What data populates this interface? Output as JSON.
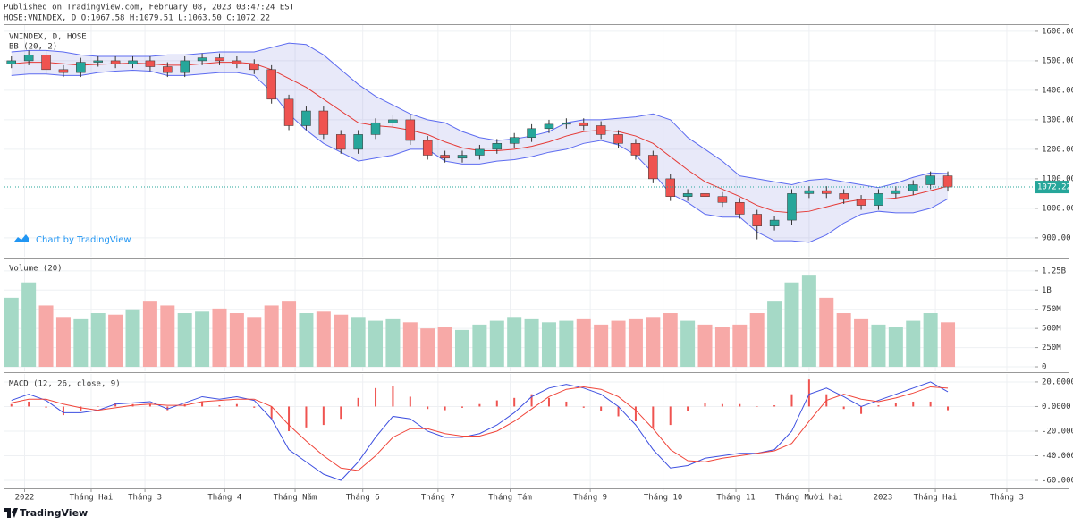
{
  "header": {
    "published": "Published on TradingView.com, February 08, 2023 03:47:24 EST",
    "symbol_line": "HOSE:VNINDEX, D O:1067.58 H:1079.51 L:1063.50 C:1072.22"
  },
  "watermark": "Chart by TradingView",
  "footer": "TradingView",
  "chart_data": [
    {
      "type": "candlestick",
      "title": "VNINDEX, D, HOSE",
      "indicator": "BB (20, 2)",
      "x": [
        0,
        5,
        10,
        15,
        20,
        25,
        30,
        35,
        40,
        45,
        50,
        55,
        60,
        65,
        70,
        75,
        80,
        85,
        90,
        95,
        100,
        105,
        110,
        115,
        120,
        125,
        130,
        135,
        140,
        145,
        150,
        155,
        160,
        165,
        170,
        175,
        180,
        185,
        190,
        195,
        200,
        205,
        210,
        215,
        220,
        225,
        230,
        235,
        240,
        245,
        250,
        255,
        260,
        265,
        270
      ],
      "open": [
        1490,
        1500,
        1520,
        1470,
        1460,
        1495,
        1500,
        1490,
        1500,
        1480,
        1460,
        1500,
        1510,
        1500,
        1490,
        1470,
        1370,
        1280,
        1330,
        1250,
        1200,
        1250,
        1290,
        1300,
        1230,
        1180,
        1170,
        1180,
        1200,
        1220,
        1240,
        1270,
        1285,
        1290,
        1280,
        1250,
        1220,
        1180,
        1100,
        1040,
        1050,
        1040,
        1020,
        980,
        940,
        960,
        1050,
        1060,
        1050,
        1030,
        1010,
        1050,
        1060,
        1080,
        1110
      ],
      "high": [
        1515,
        1535,
        1535,
        1485,
        1510,
        1515,
        1515,
        1515,
        1515,
        1495,
        1515,
        1525,
        1525,
        1515,
        1505,
        1485,
        1385,
        1345,
        1345,
        1265,
        1265,
        1305,
        1315,
        1315,
        1245,
        1195,
        1195,
        1215,
        1235,
        1255,
        1285,
        1300,
        1305,
        1305,
        1295,
        1265,
        1235,
        1195,
        1115,
        1065,
        1065,
        1055,
        1035,
        995,
        975,
        1065,
        1075,
        1075,
        1065,
        1045,
        1065,
        1075,
        1095,
        1125,
        1125
      ],
      "low": [
        1475,
        1485,
        1455,
        1445,
        1445,
        1480,
        1475,
        1475,
        1465,
        1445,
        1445,
        1485,
        1485,
        1475,
        1455,
        1355,
        1265,
        1265,
        1235,
        1185,
        1185,
        1235,
        1275,
        1215,
        1165,
        1155,
        1155,
        1165,
        1185,
        1205,
        1225,
        1255,
        1270,
        1265,
        1235,
        1205,
        1165,
        1085,
        1025,
        1025,
        1025,
        1005,
        965,
        895,
        925,
        945,
        1035,
        1035,
        1015,
        995,
        995,
        1035,
        1045,
        1065,
        1057
      ],
      "close": [
        1500,
        1520,
        1470,
        1460,
        1495,
        1500,
        1490,
        1500,
        1480,
        1460,
        1500,
        1510,
        1500,
        1490,
        1470,
        1370,
        1280,
        1330,
        1250,
        1200,
        1250,
        1290,
        1300,
        1230,
        1180,
        1170,
        1180,
        1200,
        1220,
        1240,
        1270,
        1285,
        1290,
        1280,
        1250,
        1220,
        1180,
        1100,
        1040,
        1050,
        1040,
        1020,
        980,
        940,
        960,
        1050,
        1060,
        1050,
        1030,
        1010,
        1050,
        1060,
        1080,
        1110,
        1072.22
      ],
      "up_color": "#26a69a",
      "down_color": "#ef5350",
      "bands": {
        "upper": [
          1530,
          1535,
          1535,
          1530,
          1520,
          1515,
          1515,
          1515,
          1515,
          1520,
          1520,
          1525,
          1530,
          1530,
          1530,
          1545,
          1560,
          1555,
          1520,
          1470,
          1420,
          1380,
          1350,
          1320,
          1300,
          1290,
          1260,
          1240,
          1230,
          1235,
          1245,
          1260,
          1290,
          1300,
          1300,
          1305,
          1310,
          1320,
          1300,
          1240,
          1200,
          1160,
          1110,
          1100,
          1090,
          1080,
          1095,
          1100,
          1090,
          1080,
          1070,
          1085,
          1105,
          1120,
          1118
        ],
        "basis": [
          1490,
          1495,
          1495,
          1490,
          1485,
          1488,
          1490,
          1492,
          1490,
          1485,
          1485,
          1490,
          1495,
          1495,
          1490,
          1470,
          1440,
          1410,
          1370,
          1330,
          1290,
          1280,
          1275,
          1265,
          1250,
          1225,
          1205,
          1195,
          1195,
          1200,
          1210,
          1225,
          1245,
          1260,
          1265,
          1260,
          1245,
          1220,
          1175,
          1130,
          1090,
          1065,
          1040,
          1010,
          990,
          985,
          990,
          1005,
          1020,
          1030,
          1030,
          1035,
          1045,
          1060,
          1075
        ],
        "lower": [
          1450,
          1455,
          1455,
          1450,
          1450,
          1460,
          1465,
          1468,
          1465,
          1450,
          1450,
          1455,
          1460,
          1460,
          1450,
          1395,
          1320,
          1265,
          1220,
          1190,
          1160,
          1170,
          1180,
          1200,
          1200,
          1160,
          1150,
          1150,
          1160,
          1165,
          1175,
          1190,
          1200,
          1220,
          1230,
          1215,
          1180,
          1120,
          1050,
          1020,
          980,
          970,
          970,
          920,
          890,
          890,
          885,
          910,
          950,
          980,
          990,
          985,
          985,
          1000,
          1032
        ],
        "band_color": "#5c6bf0",
        "basis_color": "#e53935",
        "fill": "rgba(120,123,220,0.17)"
      },
      "xlim": [
        -2,
        295
      ],
      "ylim": [
        836,
        1621
      ],
      "yticks": [
        {
          "value": 900,
          "label": "900.00"
        },
        {
          "value": 1000,
          "label": "1000.00"
        },
        {
          "value": 1100,
          "label": "1100.00"
        },
        {
          "value": 1200,
          "label": "1200.00"
        },
        {
          "value": 1300,
          "label": "1300.00"
        },
        {
          "value": 1400,
          "label": "1400.00"
        },
        {
          "value": 1500,
          "label": "1500.00"
        },
        {
          "value": 1600,
          "label": "1600.00"
        }
      ],
      "grid": true
    },
    {
      "type": "bar",
      "title": "Volume (20)",
      "x": [
        0,
        5,
        10,
        15,
        20,
        25,
        30,
        35,
        40,
        45,
        50,
        55,
        60,
        65,
        70,
        75,
        80,
        85,
        90,
        95,
        100,
        105,
        110,
        115,
        120,
        125,
        130,
        135,
        140,
        145,
        150,
        155,
        160,
        165,
        170,
        175,
        180,
        185,
        190,
        195,
        200,
        205,
        210,
        215,
        220,
        225,
        230,
        235,
        240,
        245,
        250,
        255,
        260,
        265,
        270
      ],
      "values": [
        900000000,
        1100000000,
        800000000,
        650000000,
        620000000,
        700000000,
        680000000,
        750000000,
        850000000,
        800000000,
        700000000,
        720000000,
        760000000,
        700000000,
        650000000,
        800000000,
        850000000,
        700000000,
        720000000,
        680000000,
        650000000,
        600000000,
        620000000,
        580000000,
        500000000,
        520000000,
        480000000,
        550000000,
        600000000,
        650000000,
        620000000,
        580000000,
        600000000,
        620000000,
        550000000,
        600000000,
        620000000,
        650000000,
        700000000,
        600000000,
        550000000,
        520000000,
        550000000,
        700000000,
        850000000,
        1100000000,
        1200000000,
        900000000,
        700000000,
        620000000,
        550000000,
        520000000,
        600000000,
        700000000,
        580000000
      ],
      "up_color": "#a5d9c6",
      "down_color": "#f7a9a7",
      "xlim": [
        -2,
        295
      ],
      "ylim": [
        -58000000,
        1400000000
      ],
      "yticks": [
        0,
        {
          "value": 250000000,
          "label": "250M"
        },
        {
          "value": 500000000,
          "label": "500M"
        },
        {
          "value": 750000000,
          "label": "750M"
        },
        {
          "value": 1000000000,
          "label": "1B"
        },
        {
          "value": 1250000000,
          "label": "1.25B"
        }
      ],
      "grid": true
    },
    {
      "type": "macd",
      "title": "MACD (12, 26, close, 9)",
      "x": [
        0,
        5,
        10,
        15,
        20,
        25,
        30,
        35,
        40,
        45,
        50,
        55,
        60,
        65,
        70,
        75,
        80,
        85,
        90,
        95,
        100,
        105,
        110,
        115,
        120,
        125,
        130,
        135,
        140,
        145,
        150,
        155,
        160,
        165,
        170,
        175,
        180,
        185,
        190,
        195,
        200,
        205,
        210,
        215,
        220,
        225,
        230,
        235,
        240,
        245,
        250,
        255,
        260,
        265,
        270
      ],
      "macd": {
        "color": "#3d4fe0",
        "values": [
          5,
          10,
          5,
          -5,
          -5,
          -3,
          2,
          3,
          4,
          -2,
          3,
          8,
          6,
          8,
          5,
          -10,
          -35,
          -45,
          -55,
          -60,
          -45,
          -25,
          -8,
          -10,
          -20,
          -25,
          -25,
          -22,
          -15,
          -5,
          8,
          15,
          18,
          15,
          10,
          0,
          -15,
          -35,
          -50,
          -48,
          -42,
          -40,
          -38,
          -38,
          -35,
          -20,
          10,
          15,
          8,
          0,
          5,
          10,
          15,
          20,
          12
        ]
      },
      "signal": {
        "color": "#f0453a",
        "values": [
          3,
          6,
          6,
          2,
          -1,
          -3,
          -1,
          1,
          2,
          1,
          1,
          4,
          5,
          6,
          6,
          0,
          -15,
          -28,
          -40,
          -50,
          -52,
          -40,
          -25,
          -18,
          -18,
          -22,
          -24,
          -24,
          -20,
          -12,
          -2,
          8,
          14,
          16,
          14,
          8,
          -3,
          -18,
          -35,
          -44,
          -45,
          -42,
          -40,
          -38,
          -36,
          -30,
          -12,
          5,
          10,
          6,
          4,
          7,
          11,
          16,
          15
        ]
      },
      "histogram": {
        "color": "#ef5350",
        "values": [
          2,
          4,
          -1,
          -7,
          -4,
          0,
          3,
          2,
          2,
          -3,
          2,
          4,
          1,
          2,
          -1,
          -10,
          -20,
          -17,
          -15,
          -10,
          7,
          15,
          17,
          8,
          -2,
          -3,
          -1,
          2,
          5,
          7,
          10,
          7,
          4,
          -1,
          -4,
          -8,
          -12,
          -17,
          -15,
          -4,
          3,
          2,
          2,
          0,
          1,
          10,
          22,
          10,
          -2,
          -6,
          1,
          3,
          4,
          4,
          -3
        ]
      },
      "xlim": [
        -2,
        295
      ],
      "ylim": [
        -65.8,
        26.5
      ],
      "yticks": [
        {
          "value": -60,
          "label": "-60.0000"
        },
        {
          "value": -40,
          "label": "-40.0000"
        },
        {
          "value": -20,
          "label": "-20.0000"
        },
        {
          "value": 0,
          "label": "0.0000"
        },
        {
          "value": 20,
          "label": "20.0000"
        }
      ],
      "xticks": [
        {
          "value": 3.8,
          "label": "2022"
        },
        {
          "value": 23,
          "label": "Tháng Hai"
        },
        {
          "value": 38.5,
          "label": "Tháng 3"
        },
        {
          "value": 61.5,
          "label": "Tháng 4"
        },
        {
          "value": 81.8,
          "label": "Tháng Năm"
        },
        {
          "value": 101.3,
          "label": "Tháng 6"
        },
        {
          "value": 123,
          "label": "Tháng 7"
        },
        {
          "value": 143.8,
          "label": "Tháng Tám"
        },
        {
          "value": 166.9,
          "label": "Tháng 9"
        },
        {
          "value": 187.9,
          "label": "Tháng 10"
        },
        {
          "value": 208.9,
          "label": "Tháng 11"
        },
        {
          "value": 230,
          "label": "Tháng Mười hai"
        },
        {
          "value": 251.3,
          "label": "2023"
        },
        {
          "value": 266.4,
          "label": "Tháng Hai"
        },
        {
          "value": 287,
          "label": "Tháng 3"
        }
      ],
      "grid": true
    }
  ]
}
